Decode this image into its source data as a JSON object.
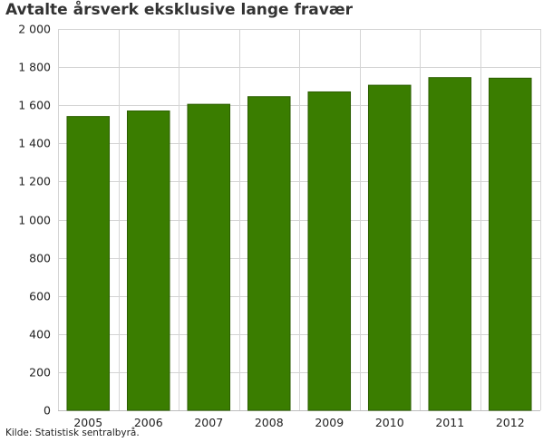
{
  "chart_data": {
    "type": "bar",
    "title": "Avtalte årsverk eksklusive lange fravær",
    "xlabel": "",
    "ylabel": "",
    "categories": [
      "2005",
      "2006",
      "2007",
      "2008",
      "2009",
      "2010",
      "2011",
      "2012"
    ],
    "values": [
      1541,
      1570,
      1605,
      1645,
      1670,
      1705,
      1745,
      1742
    ],
    "ylim": [
      0,
      2000
    ],
    "yticks": [
      0,
      200,
      400,
      600,
      800,
      1000,
      1200,
      1400,
      1600,
      1800,
      2000
    ],
    "ytick_labels": [
      "0",
      "200",
      "400",
      "600",
      "800",
      "1 000",
      "1 200",
      "1 400",
      "1 600",
      "1 800",
      "2 000"
    ],
    "grid": true,
    "bar_color": "#3a7d00",
    "bar_edge_color": "#2b5e00",
    "grid_color": "#d4d4d4"
  },
  "source": "Kilde: Statistisk sentralbyrå."
}
